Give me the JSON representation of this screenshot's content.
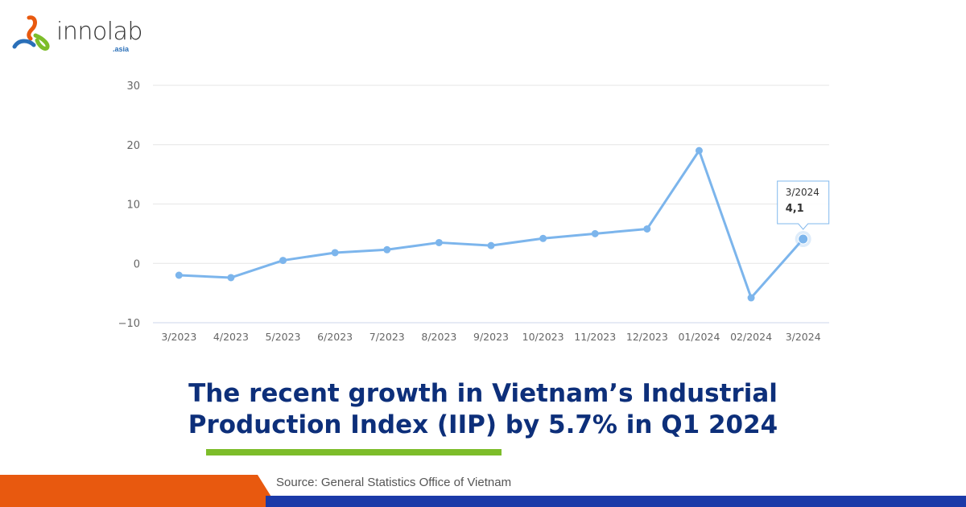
{
  "logo": {
    "text": "innolab",
    "sub": ".asia"
  },
  "chart_data": {
    "type": "line",
    "categories": [
      "3/2023",
      "4/2023",
      "5/2023",
      "6/2023",
      "7/2023",
      "8/2023",
      "9/2023",
      "10/2023",
      "11/2023",
      "12/2023",
      "01/2024",
      "02/2024",
      "3/2024"
    ],
    "values": [
      -2.0,
      -2.4,
      0.5,
      1.8,
      2.3,
      3.5,
      3.0,
      4.2,
      5.0,
      5.8,
      19.0,
      -5.8,
      4.1
    ],
    "ylim": [
      -10,
      30
    ],
    "yticks": [
      30,
      20,
      10,
      0,
      -10
    ],
    "ytick_labels": [
      "30",
      "20",
      "10",
      "0",
      "−10"
    ],
    "grid": true,
    "color": "#7cb5ec",
    "tooltip": {
      "label": "3/2024",
      "value": "4,1"
    }
  },
  "title": {
    "line1": "The recent growth in Vietnam’s Industrial",
    "line2": "Production Index (IIP) by 5.7% in Q1 2024"
  },
  "source": "Source: General Statistics Office of Vietnam",
  "colors": {
    "title": "#0d2f7a",
    "accent_green": "#7dbd2a",
    "orange": "#e8590f",
    "blue": "#1b3aa8"
  }
}
